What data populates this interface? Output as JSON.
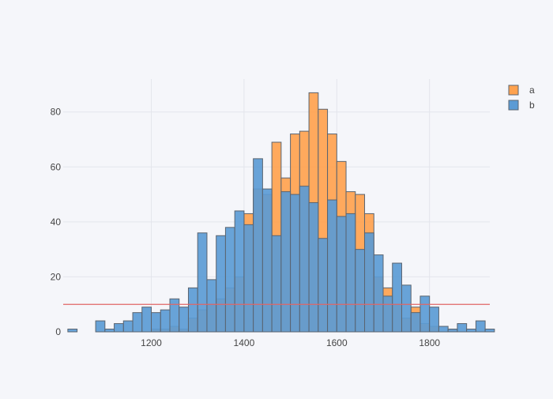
{
  "chart_data": {
    "type": "bar",
    "barmode": "overlay",
    "bin_start": 1020,
    "bin_width": 20,
    "xlim": [
      1010,
      1930
    ],
    "ylim": [
      0,
      92
    ],
    "x_ticks": [
      1200,
      1400,
      1600,
      1800
    ],
    "y_ticks": [
      0,
      20,
      40,
      60,
      80
    ],
    "grid": true,
    "legend_position": "top-right",
    "series": [
      {
        "name": "a",
        "color": "#ffa24f",
        "values": [
          0,
          0,
          0,
          0,
          0,
          0,
          0,
          0,
          0,
          1,
          1,
          2,
          1,
          5,
          8,
          10,
          12,
          16,
          20,
          43,
          52,
          50,
          69,
          56,
          72,
          73,
          87,
          81,
          72,
          62,
          51,
          50,
          43,
          20,
          16,
          10,
          5,
          9,
          3,
          2,
          0,
          1,
          0,
          0,
          0,
          0,
          0
        ]
      },
      {
        "name": "b",
        "color": "#5b9bd5",
        "values": [
          1,
          0,
          0,
          4,
          1,
          3,
          4,
          7,
          9,
          7,
          8,
          12,
          9,
          16,
          36,
          19,
          35,
          38,
          44,
          39,
          63,
          52,
          35,
          51,
          50,
          53,
          47,
          34,
          48,
          42,
          43,
          30,
          36,
          28,
          13,
          25,
          17,
          7,
          13,
          9,
          2,
          1,
          3,
          1,
          4,
          1,
          0
        ]
      }
    ],
    "hline": {
      "y": 10,
      "color": "#e06666"
    }
  }
}
